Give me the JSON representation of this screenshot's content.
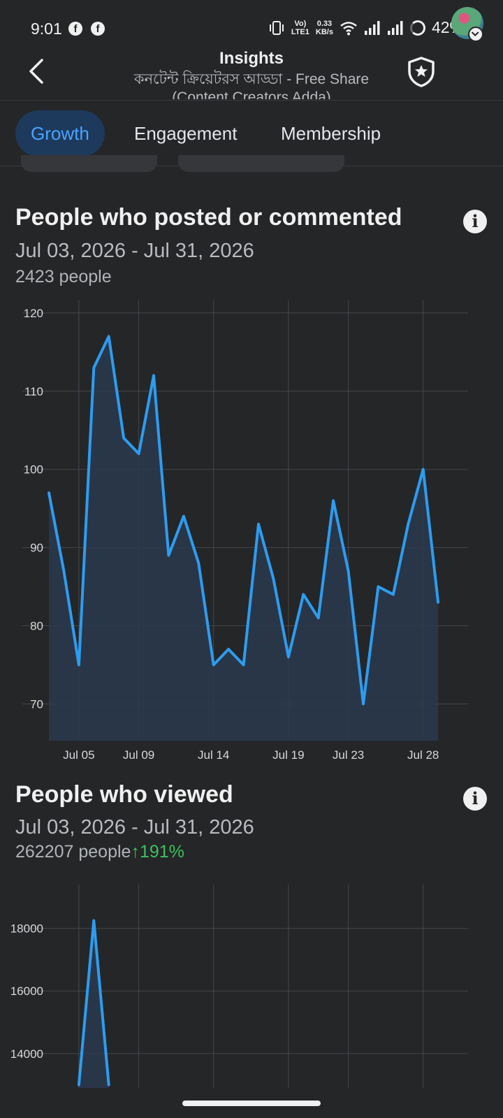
{
  "status": {
    "time": "9:01",
    "fb_icon": "f",
    "net_top": "Vo)",
    "net_bot": "LTE1",
    "speed_top": "0.33",
    "speed_bot": "KB/s",
    "battery": "42%"
  },
  "header": {
    "title": "Insights",
    "subtitle": "কনটেন্ট ক্রিয়েটরস আড্ডা - Free Share (Content Creators Adda)"
  },
  "tabs": [
    {
      "label": "Growth"
    },
    {
      "label": "Engagement"
    },
    {
      "label": "Membership"
    }
  ],
  "cards": [
    {
      "title": "People who posted or commented",
      "date_range": "Jul 03, 2026 - Jul 31, 2026",
      "count": "2423 people",
      "info": "i"
    },
    {
      "title": "People who viewed",
      "date_range": "Jul 03, 2026 - Jul 31, 2026",
      "count": "262207 people",
      "change_arrow": "↑",
      "change_pct": "191%",
      "info": "i"
    }
  ],
  "chart_data": [
    {
      "type": "area",
      "title": "People who posted or commented",
      "x_ticks": [
        "Jul 05",
        "Jul 09",
        "Jul 14",
        "Jul 19",
        "Jul 23",
        "Jul 28"
      ],
      "y_ticks": [
        70,
        80,
        90,
        100,
        110,
        120
      ],
      "ylim": [
        65.3,
        121.6
      ],
      "x_index_range": [
        0,
        28
      ],
      "x_tick_indices": [
        2,
        6,
        11,
        16,
        20,
        25
      ],
      "values": [
        97,
        87,
        75,
        113,
        117,
        104,
        102,
        112,
        89,
        94,
        88,
        75,
        77,
        75,
        93,
        86,
        76,
        84,
        81,
        96,
        87,
        70,
        85,
        84,
        93,
        100,
        83
      ],
      "color": "#2d9cf0",
      "grid": true
    },
    {
      "type": "area",
      "title": "People who viewed",
      "y_ticks": [
        14000,
        16000,
        18000
      ],
      "ylim": [
        12900,
        19400
      ],
      "x_index_range": [
        0,
        28
      ],
      "x_grid_indices": [
        2,
        6,
        11,
        16,
        20,
        25
      ],
      "values": [
        null,
        null,
        13000,
        18250,
        13000
      ],
      "color": "#2d9cf0",
      "grid": true
    }
  ]
}
